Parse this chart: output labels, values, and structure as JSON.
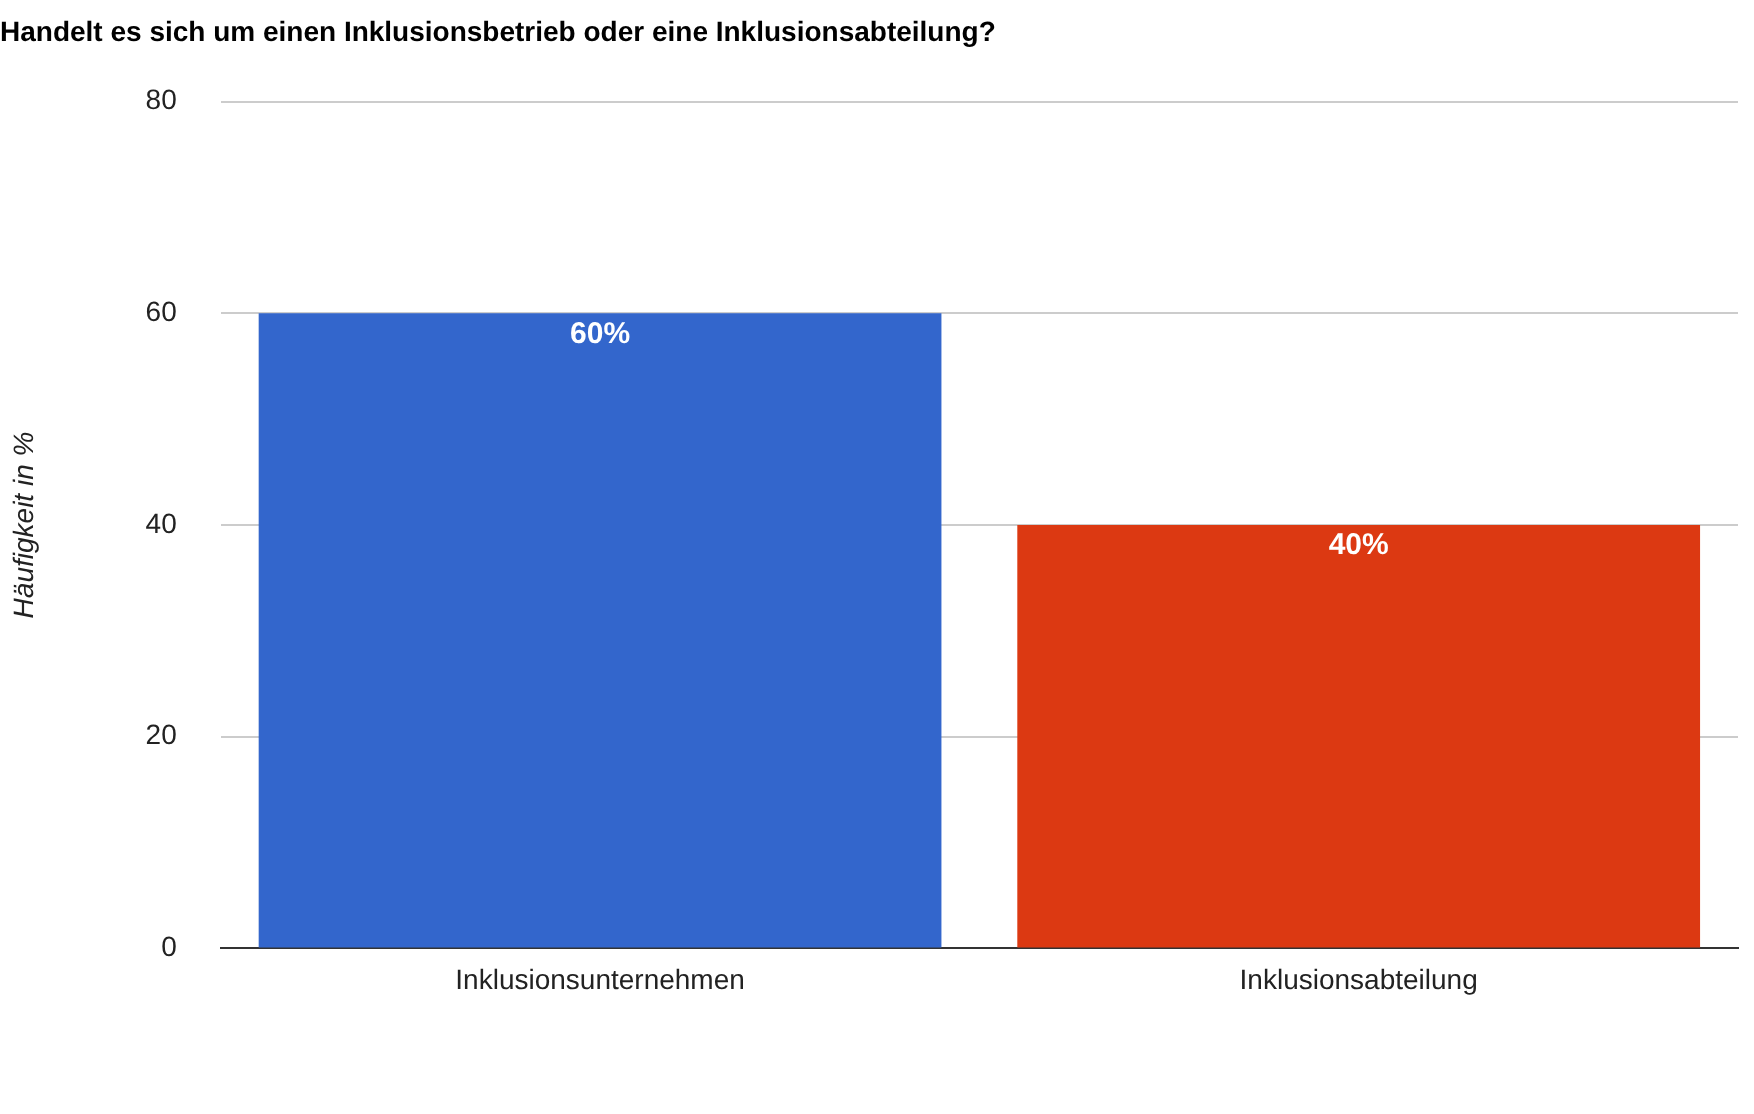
{
  "chart_data": {
    "type": "bar",
    "title": "Handelt es sich um einen Inklusionsbetrieb oder eine Inklusionsabteilung?",
    "ylabel": "Häufigkeit in %",
    "categories": [
      "Inklusionsunternehmen",
      "Inklusionsabteilung"
    ],
    "values": [
      60,
      40
    ],
    "colors": [
      "#3366cc",
      "#dc3912"
    ],
    "value_labels": [
      "60%",
      "40%"
    ],
    "ylim": [
      0,
      80
    ],
    "yticks": [
      0,
      20,
      40,
      60,
      80
    ],
    "grid": "y",
    "legend": false
  }
}
